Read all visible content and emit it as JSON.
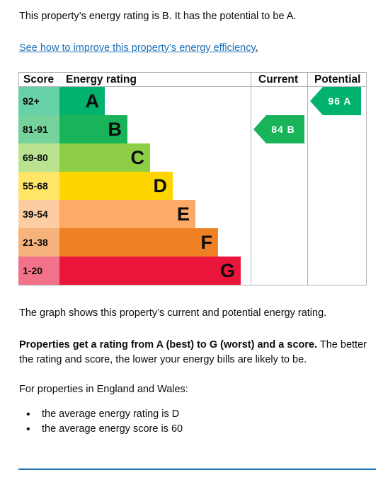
{
  "intro": "This property’s energy rating is B. It has the potential to be A.",
  "improve_link": "See how to improve this property’s energy efficiency",
  "improve_link_suffix": ".",
  "table": {
    "headers": {
      "score": "Score",
      "rating": "Energy rating",
      "current": "Current",
      "potential": "Potential"
    },
    "bands": [
      {
        "range": "92+",
        "letter": "A",
        "color": "#00b26c",
        "score_bg": "#66d0a6",
        "text": "#0b0c0c",
        "fill": 0.125
      },
      {
        "range": "81-91",
        "letter": "B",
        "color": "#19b459",
        "score_bg": "#75d29b",
        "text": "#0b0c0c",
        "fill": 0.25
      },
      {
        "range": "69-80",
        "letter": "C",
        "color": "#8dce46",
        "score_bg": "#bbe290",
        "text": "#0b0c0c",
        "fill": 0.375
      },
      {
        "range": "55-68",
        "letter": "D",
        "color": "#ffd500",
        "score_bg": "#ffe666",
        "text": "#0b0c0c",
        "fill": 0.5
      },
      {
        "range": "39-54",
        "letter": "E",
        "color": "#fcaa65",
        "score_bg": "#fdcca3",
        "text": "#0b0c0c",
        "fill": 0.625
      },
      {
        "range": "21-38",
        "letter": "F",
        "color": "#ef8023",
        "score_bg": "#f5b37b",
        "text": "#0b0c0c",
        "fill": 0.75
      },
      {
        "range": "1-20",
        "letter": "G",
        "color": "#e9153b",
        "score_bg": "#f27389",
        "text": "#0b0c0c",
        "fill": 0.875
      }
    ],
    "current": {
      "score": "84",
      "letter": "B",
      "band_index": 1,
      "color": "#19b459"
    },
    "potential": {
      "score": "96",
      "letter": "A",
      "band_index": 0,
      "color": "#00b26c"
    }
  },
  "graph_note": "The graph shows this property’s current and potential energy rating.",
  "rating_bold": "Properties get a rating from A (best) to G (worst) and a score.",
  "rating_rest": " The better the rating and score, the lower your energy bills are likely to be.",
  "england_wales": "For properties in England and Wales:",
  "averages": [
    "the average energy rating is D",
    "the average energy score is 60"
  ]
}
